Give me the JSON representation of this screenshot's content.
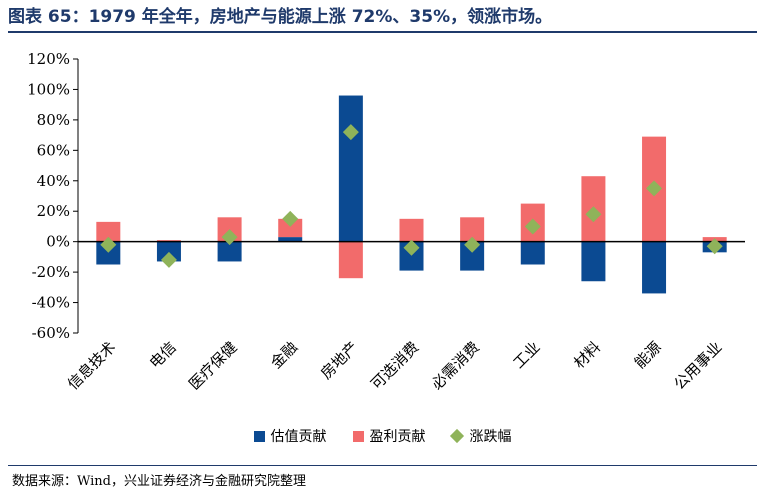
{
  "title": "图表 65：1979 年全年，房地产与能源上涨 72%、35%，领涨市场。",
  "source": "数据来源：Wind，兴业证券经济与金融研究院整理",
  "colors": {
    "valuation": "#0b4a92",
    "earnings": "#f26b6b",
    "change": "#8fb35a",
    "title": "#1f3a6b"
  },
  "chart_data": {
    "type": "bar",
    "stacked": true,
    "categories": [
      "信息技术",
      "电信",
      "医疗保健",
      "金融",
      "房地产",
      "可选消费",
      "必需消费",
      "工业",
      "材料",
      "能源",
      "公用事业"
    ],
    "series": [
      {
        "name": "估值贡献",
        "type": "bar",
        "color": "#0b4a92",
        "values": [
          -15,
          -13,
          -13,
          3,
          96,
          -19,
          -19,
          -15,
          -26,
          -34,
          -7
        ]
      },
      {
        "name": "盈利贡献",
        "type": "bar",
        "color": "#f26b6b",
        "values": [
          13,
          1,
          16,
          12,
          -24,
          15,
          16,
          25,
          43,
          69,
          3
        ]
      },
      {
        "name": "涨跌幅",
        "type": "scatter",
        "marker": "diamond",
        "color": "#8fb35a",
        "values": [
          -2,
          -12,
          3,
          15,
          72,
          -4,
          -2,
          10,
          18,
          35,
          -3
        ]
      }
    ],
    "yticks": [
      "120%",
      "100%",
      "80%",
      "60%",
      "40%",
      "20%",
      "0%",
      "-20%",
      "-40%",
      "-60%"
    ],
    "ylim": [
      -60,
      120
    ],
    "legend": "bottom"
  }
}
